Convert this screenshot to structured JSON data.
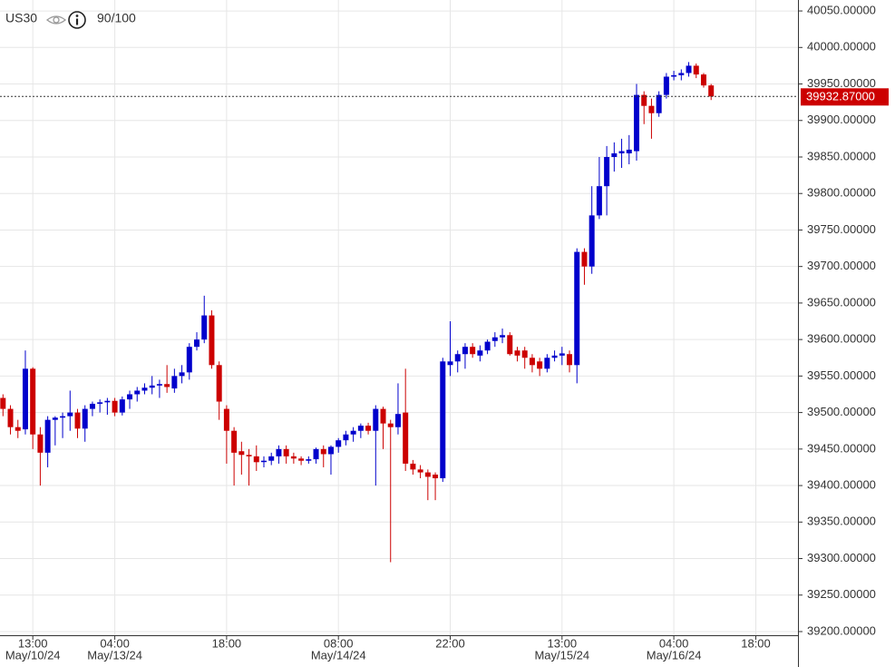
{
  "chart_data": {
    "type": "candlestick",
    "title": "US30",
    "rating": "90/100",
    "up_color": "#0000cc",
    "down_color": "#cc0000",
    "grid": true,
    "ylim": [
      39195,
      40065
    ],
    "yticks": [
      {
        "value": 39200,
        "label": "39200.00000"
      },
      {
        "value": 39250,
        "label": "39250.00000"
      },
      {
        "value": 39300,
        "label": "39300.00000"
      },
      {
        "value": 39350,
        "label": "39350.00000"
      },
      {
        "value": 39400,
        "label": "39400.00000"
      },
      {
        "value": 39450,
        "label": "39450.00000"
      },
      {
        "value": 39500,
        "label": "39500.00000"
      },
      {
        "value": 39550,
        "label": "39550.00000"
      },
      {
        "value": 39600,
        "label": "39600.00000"
      },
      {
        "value": 39650,
        "label": "39650.00000"
      },
      {
        "value": 39700,
        "label": "39700.00000"
      },
      {
        "value": 39750,
        "label": "39750.00000"
      },
      {
        "value": 39800,
        "label": "39800.00000"
      },
      {
        "value": 39850,
        "label": "39850.00000"
      },
      {
        "value": 39900,
        "label": "39900.00000"
      },
      {
        "value": 39950,
        "label": "39950.00000"
      },
      {
        "value": 40000,
        "label": "40000.00000"
      },
      {
        "value": 40050,
        "label": "40050.00000"
      }
    ],
    "last_price": {
      "value": 39932.87,
      "label": "39932.87000"
    },
    "categories": [
      null,
      null,
      null,
      null,
      "13:00",
      null,
      null,
      null,
      null,
      null,
      null,
      null,
      null,
      null,
      null,
      "04:00",
      null,
      null,
      null,
      null,
      null,
      null,
      null,
      null,
      null,
      null,
      null,
      null,
      null,
      null,
      "18:00",
      null,
      null,
      null,
      null,
      null,
      null,
      null,
      null,
      null,
      null,
      null,
      null,
      null,
      null,
      "08:00",
      null,
      null,
      null,
      null,
      null,
      null,
      null,
      null,
      null,
      null,
      null,
      null,
      null,
      null,
      "22:00",
      null,
      null,
      null,
      null,
      null,
      null,
      null,
      null,
      null,
      null,
      null,
      null,
      null,
      null,
      "13:00",
      null,
      null,
      null,
      null,
      null,
      null,
      null,
      null,
      null,
      null,
      null,
      null,
      null,
      null,
      "04:00",
      null,
      null,
      null,
      null,
      null,
      null,
      null,
      null,
      null,
      null,
      "18:00"
    ],
    "category_dates": [
      null,
      null,
      null,
      null,
      "May/10/24",
      null,
      null,
      null,
      null,
      null,
      null,
      null,
      null,
      null,
      null,
      "May/13/24",
      null,
      null,
      null,
      null,
      null,
      null,
      null,
      null,
      null,
      null,
      null,
      null,
      null,
      null,
      null,
      null,
      null,
      null,
      null,
      null,
      null,
      null,
      null,
      null,
      null,
      null,
      null,
      null,
      null,
      "May/14/24",
      null,
      null,
      null,
      null,
      null,
      null,
      null,
      null,
      null,
      null,
      null,
      null,
      null,
      null,
      null,
      null,
      null,
      null,
      null,
      null,
      null,
      null,
      null,
      null,
      null,
      null,
      null,
      null,
      null,
      "May/15/24",
      null,
      null,
      null,
      null,
      null,
      null,
      null,
      null,
      null,
      null,
      null,
      null,
      null,
      null,
      "May/16/24",
      null,
      null,
      null,
      null,
      null,
      null,
      null,
      null,
      null,
      null,
      null
    ],
    "open": [
      39520,
      39505,
      39480,
      39477,
      39560,
      39470,
      39445,
      39490,
      39493,
      39495,
      39500,
      39478,
      39505,
      39512,
      39514,
      39516,
      39500,
      39518,
      39525,
      39530,
      39534,
      39537,
      39539,
      39533,
      39550,
      39555,
      39590,
      39600,
      39633,
      39565,
      39505,
      39475,
      39447,
      39442,
      39440,
      39433,
      39434,
      39440,
      39450,
      39440,
      39437,
      39434,
      39436,
      39450,
      39443,
      39453,
      39462,
      39470,
      39475,
      39482,
      39475,
      39505,
      39485,
      39480,
      39500,
      39430,
      39422,
      39418,
      39415,
      39410,
      39565,
      39570,
      39580,
      39590,
      39578,
      39585,
      39598,
      39603,
      39606,
      39585,
      39585,
      39575,
      39570,
      39560,
      39575,
      39578,
      39580,
      39565,
      39720,
      39700,
      39770,
      39810,
      39850,
      39855,
      39855,
      39858,
      39935,
      39920,
      39910,
      39935,
      39960,
      39962,
      39965,
      39975,
      39963,
      39948,
      null,
      null,
      null,
      null,
      null,
      null
    ],
    "high": [
      39525,
      39510,
      39490,
      39585,
      39562,
      39480,
      39495,
      39495,
      39500,
      39530,
      39505,
      39510,
      39515,
      39518,
      39520,
      39520,
      39522,
      39530,
      39535,
      39540,
      39550,
      39545,
      39565,
      39560,
      39565,
      39595,
      39610,
      39660,
      39640,
      39570,
      39510,
      39480,
      39460,
      39450,
      39455,
      39440,
      39445,
      39455,
      39455,
      39445,
      39440,
      39440,
      39452,
      39455,
      39455,
      39465,
      39475,
      39480,
      39485,
      39486,
      39510,
      39508,
      39490,
      39540,
      39560,
      39435,
      39428,
      39422,
      39418,
      39575,
      39625,
      39585,
      39595,
      39595,
      39592,
      39600,
      39610,
      39615,
      39610,
      39590,
      39590,
      39580,
      39575,
      39580,
      39585,
      39590,
      39585,
      39725,
      39725,
      39810,
      39850,
      39865,
      39870,
      39875,
      39880,
      39950,
      39940,
      39930,
      39940,
      39965,
      39968,
      39970,
      39980,
      39978,
      39965,
      39950,
      null,
      null,
      null,
      null,
      null,
      null
    ],
    "low": [
      39495,
      39470,
      39465,
      39470,
      39450,
      39400,
      39425,
      39455,
      39465,
      39475,
      39465,
      39460,
      39495,
      39500,
      39497,
      39495,
      39496,
      39505,
      39515,
      39525,
      39525,
      39520,
      39527,
      39527,
      39540,
      39545,
      39585,
      39595,
      39560,
      39490,
      39430,
      39400,
      39415,
      39400,
      39420,
      39425,
      39428,
      39430,
      39430,
      39430,
      39428,
      39430,
      39430,
      39425,
      39415,
      39445,
      39455,
      39460,
      39465,
      39470,
      39400,
      39450,
      39295,
      39470,
      39420,
      39415,
      39410,
      39380,
      39380,
      39405,
      39550,
      39555,
      39560,
      39575,
      39570,
      39580,
      39590,
      39595,
      39578,
      39570,
      39560,
      39555,
      39550,
      39555,
      39570,
      39565,
      39555,
      39540,
      39675,
      39690,
      39765,
      39770,
      39830,
      39835,
      39840,
      39845,
      39895,
      39875,
      39905,
      39930,
      39955,
      39955,
      39960,
      39958,
      39945,
      39928,
      null,
      null,
      null,
      null,
      null,
      null
    ],
    "close": [
      39505,
      39480,
      39475,
      39560,
      39470,
      39445,
      39490,
      39493,
      39495,
      39500,
      39478,
      39505,
      39512,
      39514,
      39516,
      39500,
      39518,
      39525,
      39530,
      39534,
      39537,
      39539,
      39535,
      39550,
      39555,
      39590,
      39600,
      39633,
      39565,
      39515,
      39475,
      39445,
      39442,
      39440,
      39432,
      39434,
      39440,
      39450,
      39440,
      39437,
      39434,
      39436,
      39450,
      39443,
      39453,
      39462,
      39470,
      39475,
      39482,
      39475,
      39505,
      39485,
      39480,
      39498,
      39430,
      39422,
      39418,
      39412,
      39410,
      39570,
      39570,
      39580,
      39590,
      39580,
      39585,
      39597,
      39603,
      39606,
      39580,
      39578,
      39575,
      39565,
      39560,
      39575,
      39578,
      39581,
      39565,
      39720,
      39700,
      39770,
      39810,
      39850,
      39855,
      39858,
      39860,
      39935,
      39920,
      39910,
      39935,
      39960,
      39962,
      39965,
      39975,
      39963,
      39948,
      39932.87,
      null,
      null,
      null,
      null,
      null,
      null
    ]
  }
}
